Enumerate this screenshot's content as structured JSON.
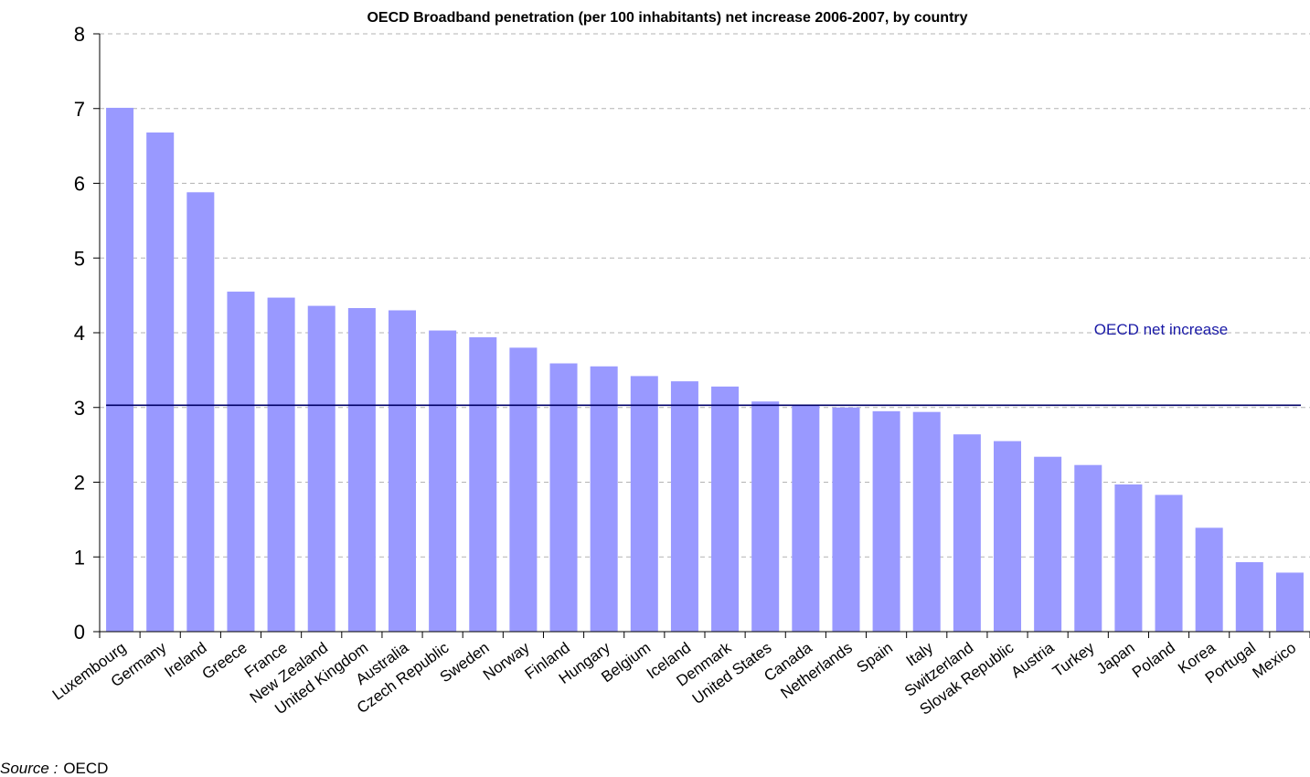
{
  "chart_data": {
    "type": "bar",
    "title": "OECD Broadband penetration (per 100 inhabitants) net increase 2006-2007, by country",
    "xlabel": "",
    "ylabel": "",
    "ylim": [
      0,
      8
    ],
    "yticks": [
      0,
      1,
      2,
      3,
      4,
      5,
      6,
      7,
      8
    ],
    "grid": true,
    "categories": [
      "Luxembourg",
      "Germany",
      "Ireland",
      "Greece",
      "France",
      "New Zealand",
      "United Kingdom",
      "Australia",
      "Czech Republic",
      "Sweden",
      "Norway",
      "Finland",
      "Hungary",
      "Belgium",
      "Iceland",
      "Denmark",
      "United States",
      "Canada",
      "Netherlands",
      "Spain",
      "Italy",
      "Switzerland",
      "Slovak Republic",
      "Austria",
      "Turkey",
      "Japan",
      "Poland",
      "Korea",
      "Portugal",
      "Mexico"
    ],
    "values": [
      7.01,
      6.68,
      5.88,
      4.55,
      4.47,
      4.36,
      4.33,
      4.3,
      4.03,
      3.94,
      3.8,
      3.59,
      3.55,
      3.42,
      3.35,
      3.28,
      3.08,
      3.03,
      3.0,
      2.95,
      2.94,
      2.64,
      2.55,
      2.34,
      2.23,
      1.97,
      1.83,
      1.39,
      0.93,
      0.79
    ],
    "bar_color": "#9999ff",
    "reference_line": {
      "label": "OECD net increase",
      "value": 3.03,
      "color": "#000066"
    }
  },
  "source": {
    "label": "Source :",
    "value": "OECD"
  }
}
